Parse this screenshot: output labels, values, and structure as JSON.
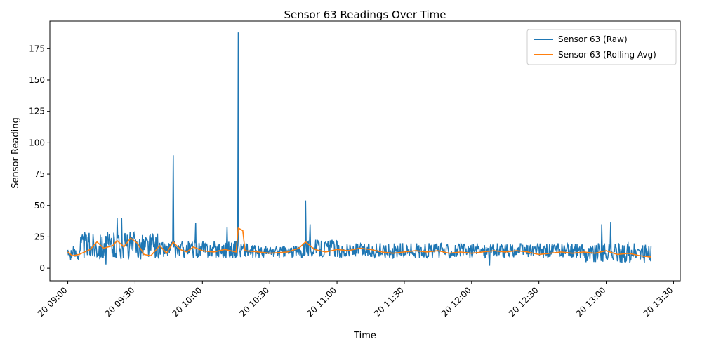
{
  "chart_data": {
    "type": "line",
    "title": "Sensor 63 Readings Over Time",
    "xlabel": "Time",
    "ylabel": "Sensor Reading",
    "x_start": "20 09:00",
    "x_end": "20 13:20",
    "xlim": [
      "20 08:52",
      "20 13:33"
    ],
    "ylim": [
      -10,
      197
    ],
    "yticks": [
      0,
      25,
      50,
      75,
      100,
      125,
      150,
      175
    ],
    "xticks": [
      "20 09:00",
      "20 09:30",
      "20 10:00",
      "20 10:30",
      "20 11:00",
      "20 11:30",
      "20 12:00",
      "20 12:30",
      "20 13:00",
      "20 13:30"
    ],
    "grid": false,
    "legend_position": "top-right",
    "series": [
      {
        "name": "Sensor 63 (Raw)",
        "color": "#1f77b4",
        "sampling_interval_minutes": 1,
        "baseline_segments": [
          {
            "from": "20 09:00",
            "to": "20 09:05",
            "center": 12,
            "amplitude": 6
          },
          {
            "from": "20 09:05",
            "to": "20 09:40",
            "center": 18,
            "amplitude": 11
          },
          {
            "from": "20 09:40",
            "to": "20 10:20",
            "center": 15,
            "amplitude": 7
          },
          {
            "from": "20 10:20",
            "to": "20 10:45",
            "center": 13,
            "amplitude": 5
          },
          {
            "from": "20 10:45",
            "to": "20 11:00",
            "center": 16,
            "amplitude": 7
          },
          {
            "from": "20 11:00",
            "to": "20 12:50",
            "center": 14,
            "amplitude": 6
          },
          {
            "from": "20 12:50",
            "to": "20 13:20",
            "center": 12,
            "amplitude": 8
          }
        ],
        "spikes": [
          {
            "time": "20 09:47",
            "value": 90
          },
          {
            "time": "20 10:16",
            "value": 188
          },
          {
            "time": "20 10:46",
            "value": 54
          },
          {
            "time": "20 09:24",
            "value": 40
          },
          {
            "time": "20 09:22",
            "value": 40
          },
          {
            "time": "20 09:57",
            "value": 36
          },
          {
            "time": "20 10:11",
            "value": 33
          },
          {
            "time": "20 10:48",
            "value": 35
          },
          {
            "time": "20 12:58",
            "value": 35
          },
          {
            "time": "20 13:02",
            "value": 37
          },
          {
            "time": "20 12:08",
            "value": 2
          },
          {
            "time": "20 09:17",
            "value": 3
          }
        ]
      },
      {
        "name": "Sensor 63 (Rolling Avg)",
        "color": "#ff7f0e",
        "points": [
          [
            "20 09:00",
            13
          ],
          [
            "20 09:02",
            10
          ],
          [
            "20 09:05",
            11
          ],
          [
            "20 09:10",
            15
          ],
          [
            "20 09:13",
            21
          ],
          [
            "20 09:16",
            16
          ],
          [
            "20 09:20",
            18
          ],
          [
            "20 09:22",
            22
          ],
          [
            "20 09:25",
            17
          ],
          [
            "20 09:28",
            24
          ],
          [
            "20 09:31",
            20
          ],
          [
            "20 09:34",
            11
          ],
          [
            "20 09:37",
            10
          ],
          [
            "20 09:41",
            18
          ],
          [
            "20 09:44",
            12
          ],
          [
            "20 09:47",
            21
          ],
          [
            "20 09:50",
            15
          ],
          [
            "20 09:53",
            13
          ],
          [
            "20 09:56",
            17
          ],
          [
            "20 10:00",
            14
          ],
          [
            "20 10:05",
            13
          ],
          [
            "20 10:10",
            15
          ],
          [
            "20 10:15",
            13
          ],
          [
            "20 10:16",
            32
          ],
          [
            "20 10:18",
            30
          ],
          [
            "20 10:19",
            14
          ],
          [
            "20 10:25",
            13
          ],
          [
            "20 10:30",
            12
          ],
          [
            "20 10:38",
            13
          ],
          [
            "20 10:43",
            16
          ],
          [
            "20 10:46",
            21
          ],
          [
            "20 10:50",
            15
          ],
          [
            "20 10:55",
            13
          ],
          [
            "20 11:00",
            15
          ],
          [
            "20 11:05",
            14
          ],
          [
            "20 11:10",
            16
          ],
          [
            "20 11:15",
            15
          ],
          [
            "20 11:20",
            13
          ],
          [
            "20 11:25",
            12
          ],
          [
            "20 11:30",
            13
          ],
          [
            "20 11:35",
            14
          ],
          [
            "20 11:40",
            13
          ],
          [
            "20 11:45",
            14
          ],
          [
            "20 11:50",
            12
          ],
          [
            "20 11:55",
            13
          ],
          [
            "20 12:00",
            12
          ],
          [
            "20 12:05",
            13
          ],
          [
            "20 12:10",
            14
          ],
          [
            "20 12:15",
            13
          ],
          [
            "20 12:20",
            14
          ],
          [
            "20 12:25",
            13
          ],
          [
            "20 12:30",
            11
          ],
          [
            "20 12:35",
            12
          ],
          [
            "20 12:40",
            13
          ],
          [
            "20 12:45",
            12
          ],
          [
            "20 12:50",
            13
          ],
          [
            "20 12:55",
            12
          ],
          [
            "20 13:00",
            14
          ],
          [
            "20 13:05",
            11
          ],
          [
            "20 13:10",
            12
          ],
          [
            "20 13:15",
            10
          ],
          [
            "20 13:20",
            9
          ]
        ]
      }
    ]
  }
}
